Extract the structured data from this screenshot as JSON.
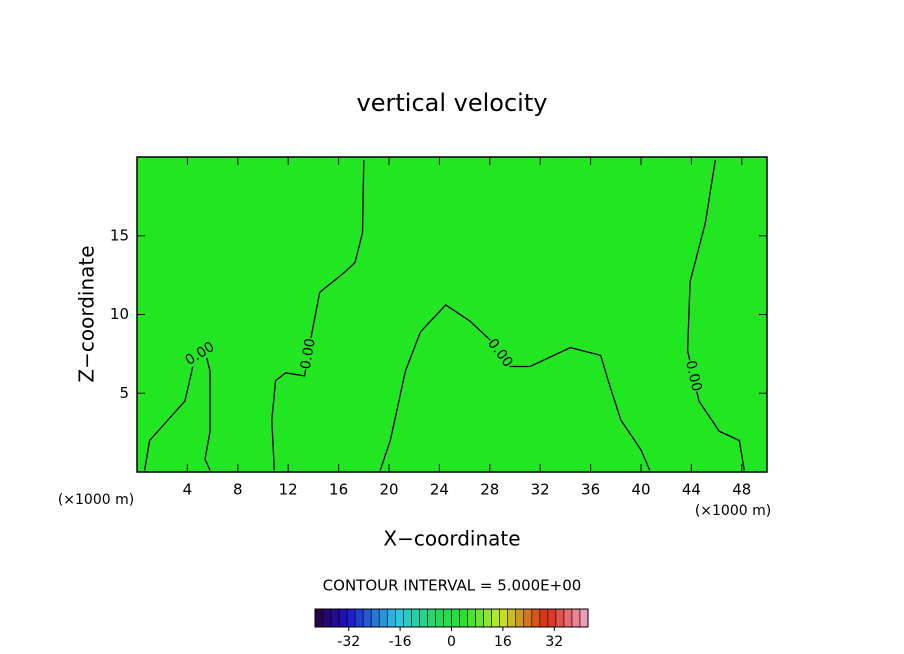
{
  "chart_data": {
    "type": "contour",
    "title": "vertical velocity",
    "xlabel": "X−coordinate",
    "ylabel": "Z−coordinate",
    "xunit_labels": [
      "(×1000 m)",
      "(×1000 m)"
    ],
    "annotation": "CONTOUR INTERVAL = 5.000E+00",
    "xlim": [
      0,
      50
    ],
    "ylim": [
      0,
      20
    ],
    "xticks": [
      4,
      8,
      12,
      16,
      20,
      24,
      28,
      32,
      36,
      40,
      44,
      48
    ],
    "yticks": [
      5,
      10,
      15
    ],
    "field_color": "#22e622",
    "contours": [
      {
        "label": "0.00",
        "x": [
          0.6,
          1,
          3.8,
          4.6,
          5.4,
          5.8,
          5.8,
          5.4,
          5.8
        ],
        "y": [
          0.1,
          2,
          4.5,
          7.3,
          7.7,
          6.4,
          2.6,
          0.8,
          0.1
        ]
      },
      {
        "label": "0.00",
        "x": [
          10.9,
          10.7,
          11,
          11.8,
          13.3,
          13.9,
          14.5,
          16.5,
          17.3,
          17.9,
          18
        ],
        "y": [
          0.1,
          3.3,
          5.8,
          6.3,
          6.1,
          8.9,
          11.4,
          12.7,
          13.3,
          15.2,
          19.8
        ]
      },
      {
        "label": "0.00",
        "x": [
          19.3,
          20.1,
          21.3,
          22.5,
          24.5,
          26.4,
          28,
          29.6,
          31.2,
          34.4,
          36.8,
          37.4,
          38.4,
          40,
          40.7
        ],
        "y": [
          0.1,
          2,
          6.4,
          8.9,
          10.6,
          9.6,
          8.4,
          6.7,
          6.7,
          7.9,
          7.4,
          5.8,
          3.3,
          1.4,
          0.1
        ]
      },
      {
        "label": "0.00",
        "x": [
          45.9,
          45.1,
          43.9,
          43.7,
          44.6,
          46.2,
          47.8,
          48.2
        ],
        "y": [
          19.8,
          15.8,
          12.1,
          7.7,
          4.5,
          2.6,
          2,
          0.1
        ]
      }
    ],
    "colorbar": {
      "clim": [
        -42.5,
        42.5
      ],
      "ticks": [
        -32,
        -16,
        0,
        16,
        32
      ]
    }
  }
}
